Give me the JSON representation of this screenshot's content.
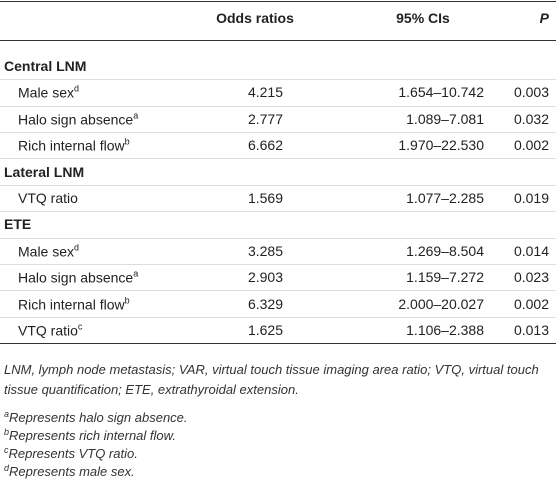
{
  "table": {
    "columns": [
      "Odds ratios",
      "95% CIs",
      "P"
    ],
    "sections": [
      {
        "title": "Central LNM",
        "rows": [
          {
            "label": "Male sex",
            "sup": "d",
            "odds": "4.215",
            "ci": "1.654–10.742",
            "p": "0.003"
          },
          {
            "label": "Halo sign absence",
            "sup": "a",
            "odds": "2.777",
            "ci": "1.089–7.081",
            "p": "0.032"
          },
          {
            "label": "Rich internal flow",
            "sup": "b",
            "odds": "6.662",
            "ci": "1.970–22.530",
            "p": "0.002"
          }
        ]
      },
      {
        "title": "Lateral LNM",
        "rows": [
          {
            "label": "VTQ ratio",
            "odds": "1.569",
            "ci": "1.077–2.285",
            "p": "0.019"
          }
        ]
      },
      {
        "title": "ETE",
        "rows": [
          {
            "label": "Male sex",
            "sup": "d",
            "odds": "3.285",
            "ci": "1.269–8.504",
            "p": "0.014"
          },
          {
            "label": "Halo sign absence",
            "sup": "a",
            "odds": "2.903",
            "ci": "1.159–7.272",
            "p": "0.023"
          },
          {
            "label": "Rich internal flow",
            "sup": "b",
            "odds": "6.329",
            "ci": "2.000–20.027",
            "p": "0.002"
          },
          {
            "label": "VTQ ratio",
            "sup": "c",
            "odds": "1.625",
            "ci": "1.106–2.388",
            "p": "0.013"
          }
        ]
      }
    ]
  },
  "footnotes": {
    "text": "LNM, lymph node metastasis; VAR, virtual touch tissue imaging area ratio; VTQ, virtual touch tissue quantification; ETE, extrathyroidal extension.",
    "notes": [
      {
        "sup": "a",
        "text": "Represents halo sign absence."
      },
      {
        "sup": "b",
        "text": "Represents rich internal flow."
      },
      {
        "sup": "c",
        "text": "Represents VTQ ratio."
      },
      {
        "sup": "d",
        "text": "Represents male sex."
      }
    ]
  }
}
